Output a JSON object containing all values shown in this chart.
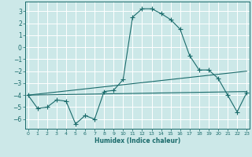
{
  "xlabel": "Humidex (Indice chaleur)",
  "ylabel": "",
  "background_color": "#cce8e8",
  "grid_color": "#ffffff",
  "line_color": "#1a6b6b",
  "x_values": [
    0,
    1,
    2,
    3,
    4,
    5,
    6,
    7,
    8,
    9,
    10,
    11,
    12,
    13,
    14,
    15,
    16,
    17,
    18,
    19,
    20,
    21,
    22,
    23
  ],
  "series1": [
    -4.0,
    -5.1,
    -5.0,
    -4.4,
    -4.5,
    -6.4,
    -5.7,
    -6.0,
    -3.7,
    -3.6,
    -2.7,
    2.5,
    3.2,
    3.2,
    2.8,
    2.3,
    1.5,
    -0.7,
    -1.9,
    -1.9,
    -2.6,
    -4.0,
    -5.4,
    -3.8
  ],
  "series2_x": [
    0,
    23
  ],
  "series2_y": [
    -4.0,
    -3.7
  ],
  "series3_x": [
    0,
    23
  ],
  "series3_y": [
    -4.0,
    -2.0
  ],
  "ylim": [
    -6.8,
    3.8
  ],
  "xlim": [
    -0.3,
    23.3
  ],
  "yticks": [
    3,
    2,
    1,
    0,
    -1,
    -2,
    -3,
    -4,
    -5,
    -6
  ],
  "xticks": [
    0,
    1,
    2,
    3,
    4,
    5,
    6,
    7,
    8,
    9,
    10,
    11,
    12,
    13,
    14,
    15,
    16,
    17,
    18,
    19,
    20,
    21,
    22,
    23
  ]
}
